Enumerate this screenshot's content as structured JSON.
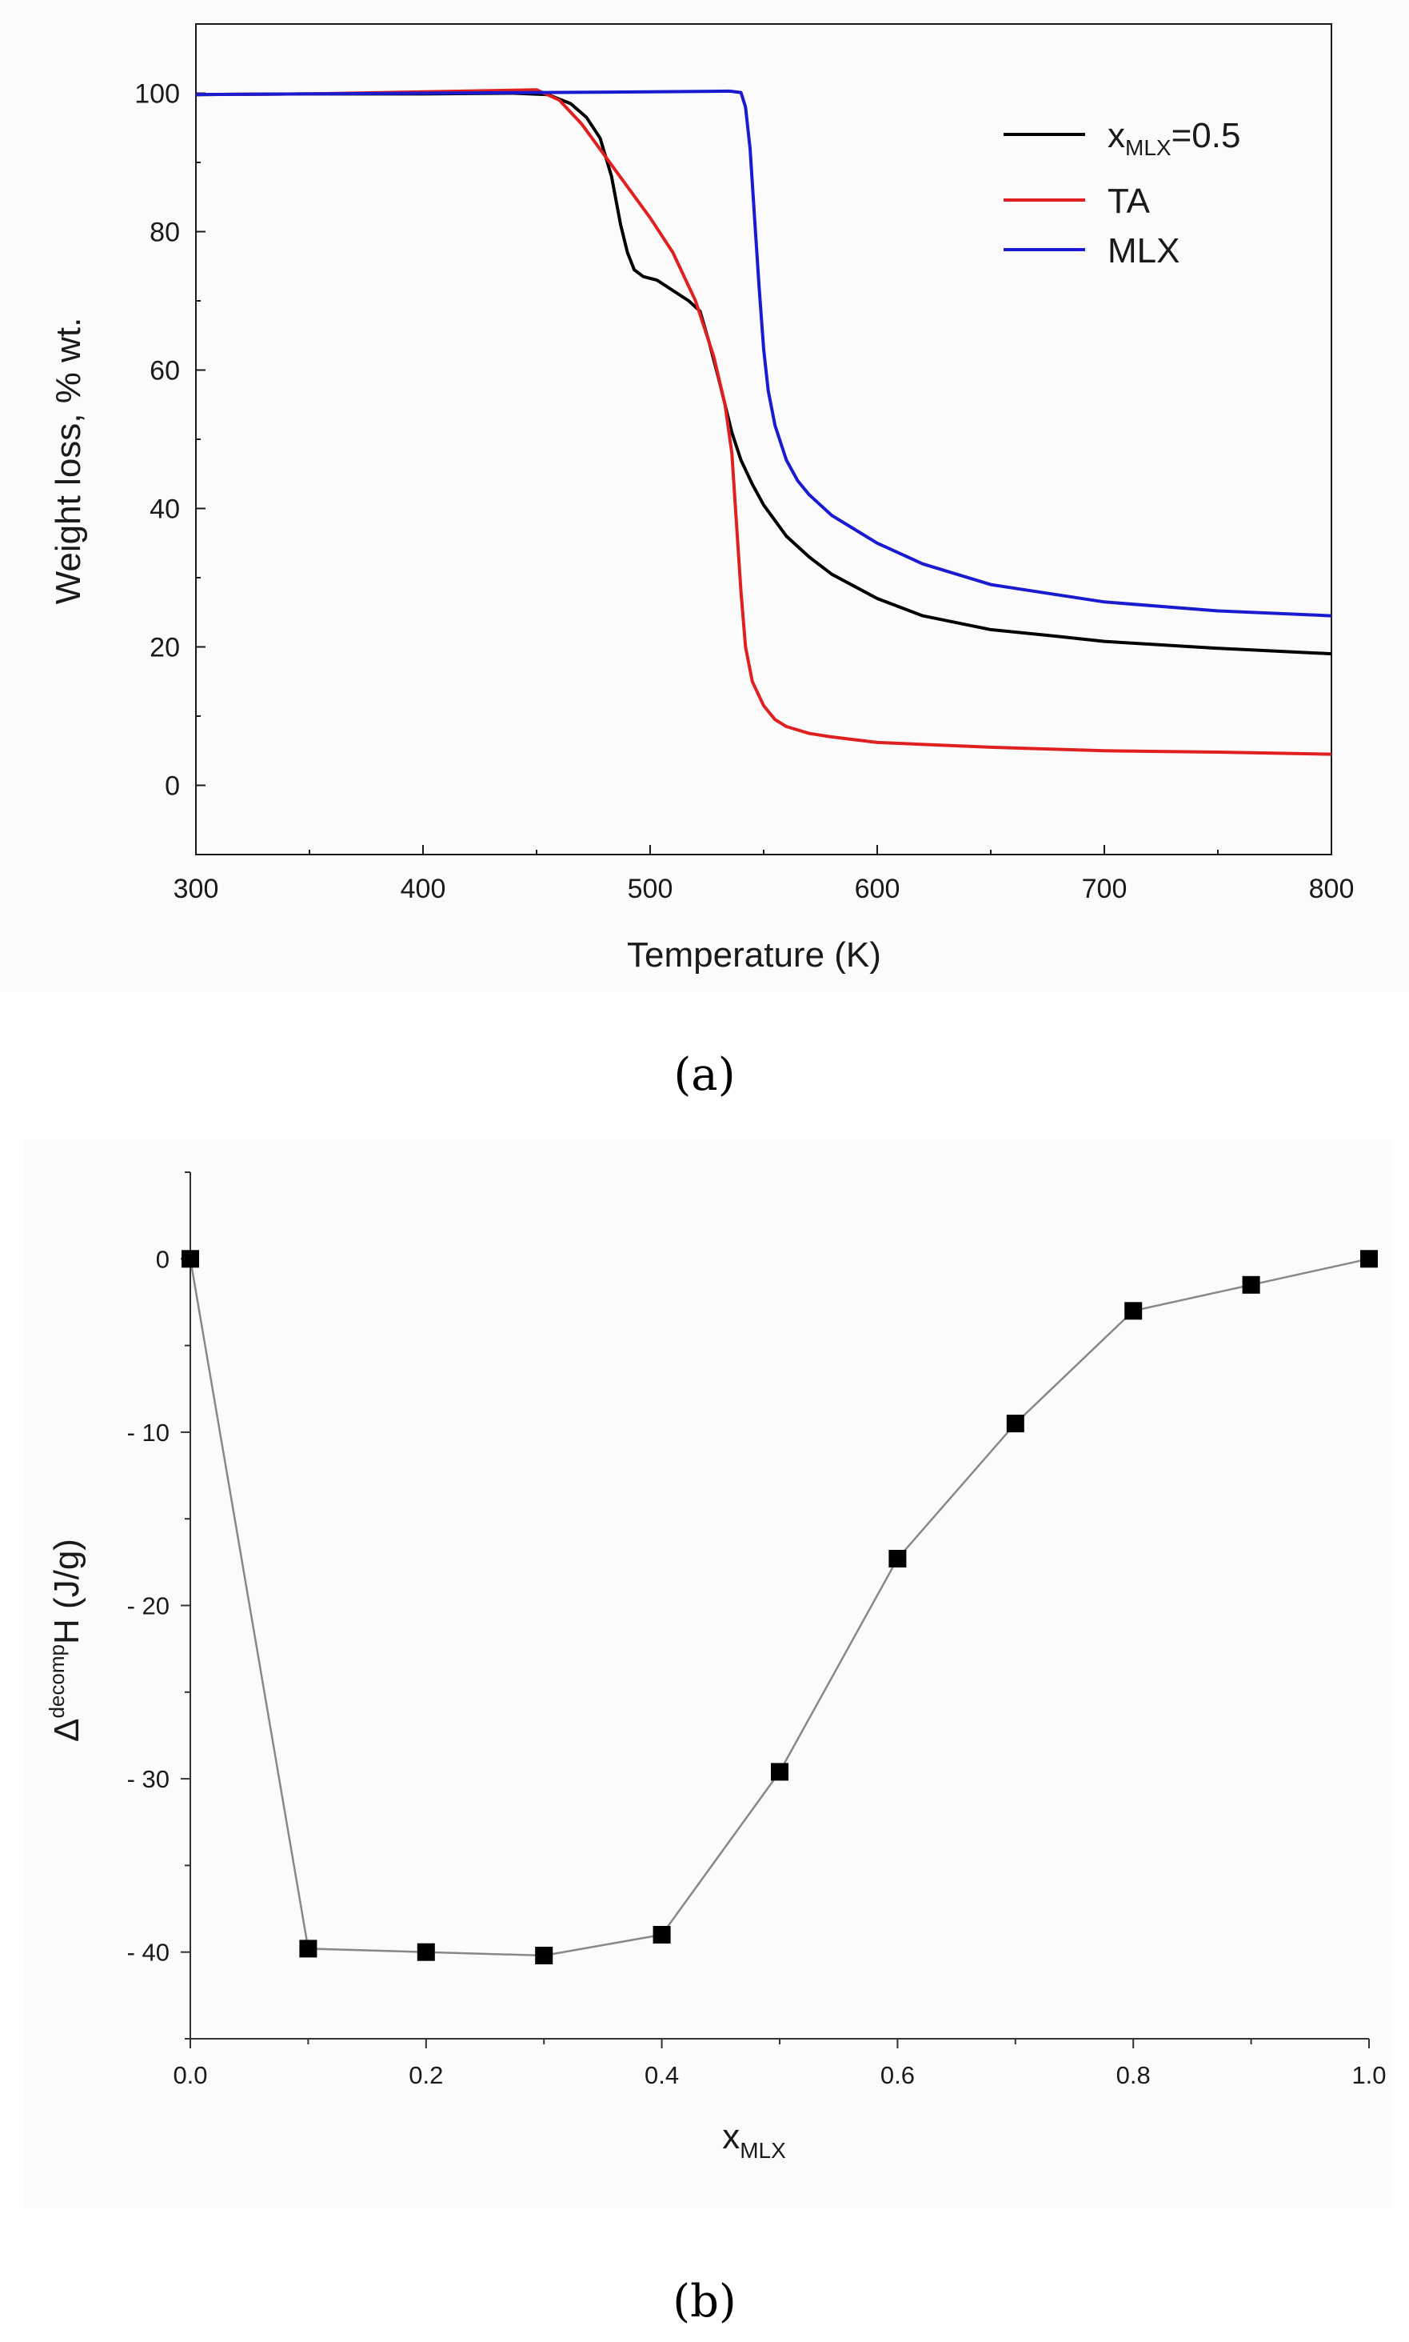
{
  "chart_data": [
    {
      "panel_label": "a",
      "type": "line",
      "title": "",
      "xlabel": "Temperature (K)",
      "ylabel": "Weight loss, % wt.",
      "xlim": [
        300,
        800
      ],
      "ylim": [
        -10,
        110
      ],
      "xticks": [
        300,
        400,
        500,
        600,
        700,
        800
      ],
      "yticks": [
        0,
        20,
        40,
        60,
        80,
        100
      ],
      "grid": false,
      "legend_position": "top-right",
      "series": [
        {
          "name": "x",
          "name_sub": "MLX",
          "name_suffix": "=0.5",
          "color": "#000000",
          "x": [
            300,
            350,
            400,
            440,
            455,
            465,
            472,
            478,
            483,
            487,
            490,
            493,
            497,
            503,
            510,
            517,
            522,
            526,
            530,
            533,
            536,
            540,
            545,
            550,
            560,
            570,
            580,
            600,
            620,
            650,
            680,
            700,
            750,
            800
          ],
          "y": [
            99.8,
            99.9,
            99.9,
            100,
            99.8,
            98.5,
            96.5,
            93.5,
            88,
            81,
            77,
            74.5,
            73.5,
            73,
            71.5,
            70,
            68.5,
            64,
            59,
            55,
            51,
            47,
            43.5,
            40.5,
            36,
            33,
            30.5,
            27,
            24.5,
            22.5,
            21.5,
            20.8,
            19.8,
            19
          ]
        },
        {
          "name": "TA",
          "color": "#e02020",
          "x": [
            300,
            350,
            400,
            450,
            460,
            470,
            480,
            490,
            500,
            510,
            520,
            528,
            533,
            536,
            538,
            540,
            542,
            545,
            550,
            555,
            560,
            570,
            580,
            600,
            650,
            700,
            750,
            800
          ],
          "y": [
            99.8,
            99.9,
            100.2,
            100.5,
            99,
            95.5,
            91,
            86.5,
            82,
            77,
            70,
            62,
            55,
            48,
            38,
            28,
            20,
            15,
            11.5,
            9.5,
            8.5,
            7.5,
            7,
            6.2,
            5.5,
            5,
            4.8,
            4.5
          ]
        },
        {
          "name": "MLX",
          "color": "#1a1ad0",
          "x": [
            300,
            400,
            500,
            535,
            540,
            542,
            544,
            546,
            548,
            550,
            552,
            555,
            560,
            565,
            570,
            580,
            590,
            600,
            620,
            650,
            700,
            750,
            800
          ],
          "y": [
            99.8,
            100,
            100.2,
            100.3,
            100.1,
            98,
            92,
            82,
            72,
            63,
            57,
            52,
            47,
            44,
            42,
            39,
            37,
            35,
            32,
            29,
            26.5,
            25.2,
            24.5
          ]
        }
      ]
    },
    {
      "panel_label": "b",
      "type": "line",
      "title": "",
      "xlabel": "x",
      "xlabel_sub": "MLX",
      "ylabel": "H (J/g)",
      "ylabel_prefix": "Δ",
      "ylabel_sup": "decomp",
      "xlim": [
        0.0,
        1.0
      ],
      "ylim": [
        -45,
        5
      ],
      "xticks": [
        "0.0",
        "0.2",
        "0.4",
        "0.6",
        "0.8",
        "1.0"
      ],
      "yticks": [
        "0",
        "- 10",
        "- 20",
        "- 30",
        "- 40"
      ],
      "ytick_values": [
        0,
        -10,
        -20,
        -30,
        -40
      ],
      "grid": false,
      "marker": "square",
      "series": [
        {
          "name": "",
          "color": "#888888",
          "marker_color": "#000000",
          "x": [
            0.0,
            0.1,
            0.2,
            0.3,
            0.4,
            0.5,
            0.6,
            0.7,
            0.8,
            0.9,
            1.0
          ],
          "y": [
            0,
            -39.8,
            -40.0,
            -40.2,
            -39.0,
            -29.6,
            -17.3,
            -9.5,
            -3.0,
            -1.5,
            0
          ]
        }
      ]
    }
  ],
  "captions": {
    "a": "(a)",
    "b": "(b)"
  }
}
